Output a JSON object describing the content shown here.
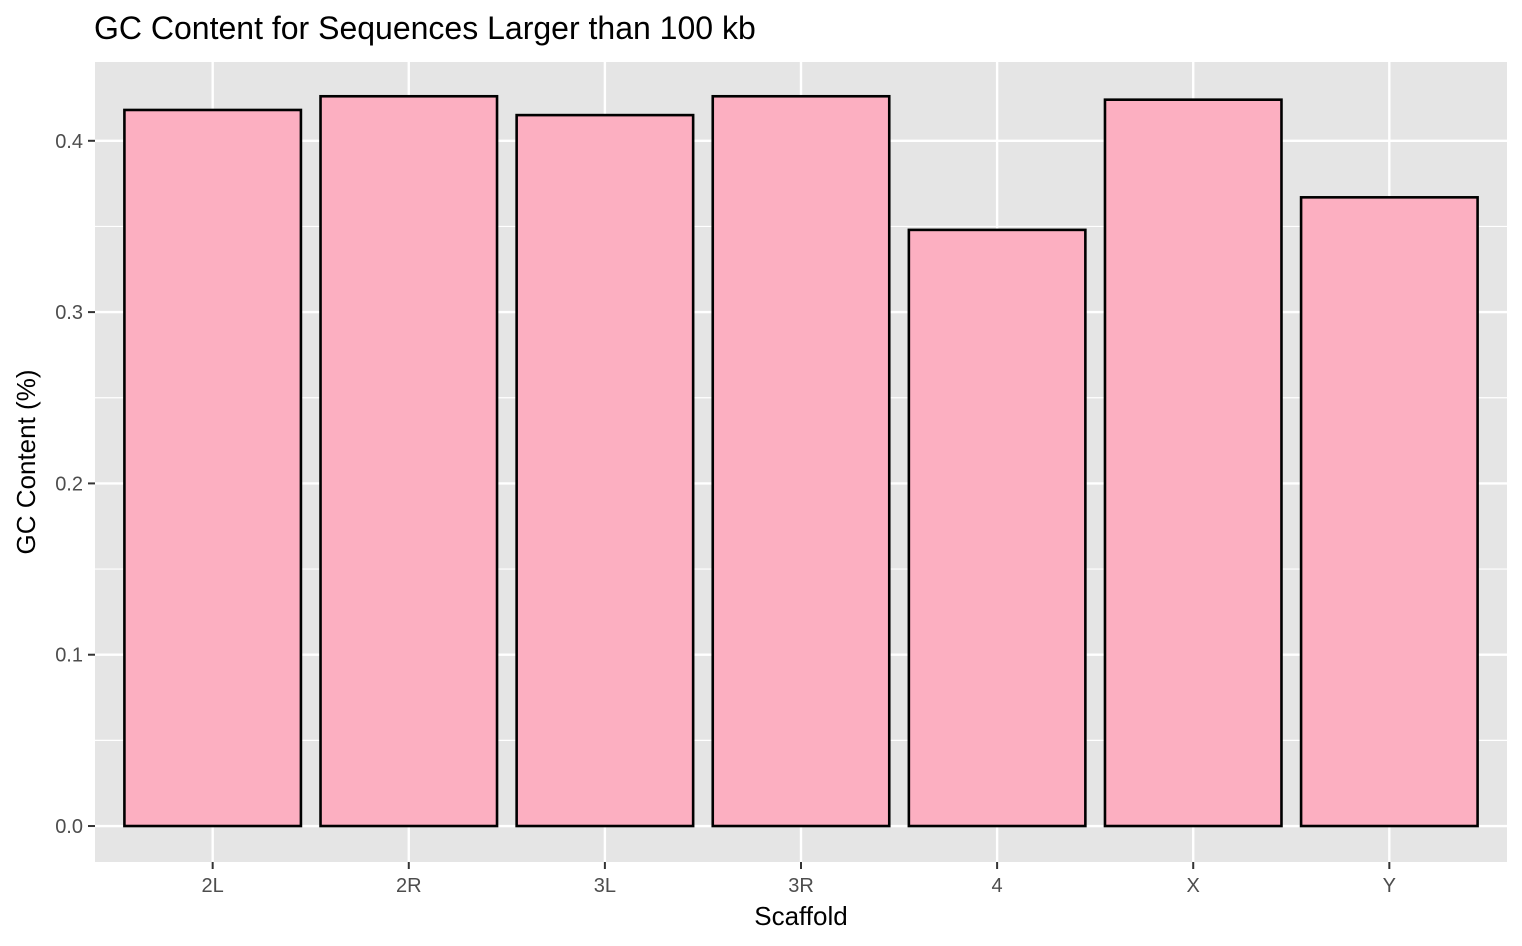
{
  "chart_data": {
    "type": "bar",
    "title": "GC Content for Sequences Larger than 100 kb",
    "xlabel": "Scaffold",
    "ylabel": "GC Content (%)",
    "categories": [
      "2L",
      "2R",
      "3L",
      "3R",
      "4",
      "X",
      "Y"
    ],
    "values": [
      0.418,
      0.426,
      0.415,
      0.426,
      0.348,
      0.424,
      0.367
    ],
    "ylim": [
      -0.021,
      0.446
    ],
    "yticks": [
      0.0,
      0.1,
      0.2,
      0.3,
      0.4
    ],
    "ytick_labels": [
      "0.0",
      "0.1",
      "0.2",
      "0.3",
      "0.4"
    ],
    "grid": true,
    "legend": "none",
    "colors": {
      "panel_background": "#e5e5e5",
      "grid": "#ffffff",
      "bar_fill": "#fcafc1",
      "bar_outline": "#000000",
      "tick_text": "#4d4d4d",
      "tick_mark": "#333333"
    }
  }
}
